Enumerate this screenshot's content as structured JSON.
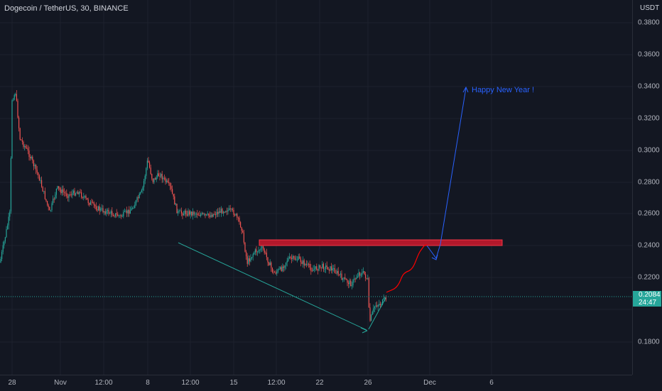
{
  "symbol_title": "Dogecoin / TetherUS, 30, BINANCE",
  "price_unit": "USDT",
  "price_ticks": [
    "0.3800",
    "0.3600",
    "0.3400",
    "0.3200",
    "0.3000",
    "0.2800",
    "0.2600",
    "0.2400",
    "0.2200",
    "0.1800"
  ],
  "time_ticks": [
    "28",
    "Nov",
    "12:00",
    "8",
    "12:00",
    "15",
    "12:00",
    "22",
    "26",
    "Dec",
    "6"
  ],
  "current_price": "0.2084",
  "countdown": "24:47",
  "annotation_text": "Happy New Year !",
  "colors": {
    "background": "#131722",
    "up": "#26a69a",
    "down": "#ef5350",
    "resistance_zone": "#b2182b",
    "projection_curve": "#ff0000",
    "projection_arrow": "#2962ff",
    "trendline": "#26a69a"
  }
}
